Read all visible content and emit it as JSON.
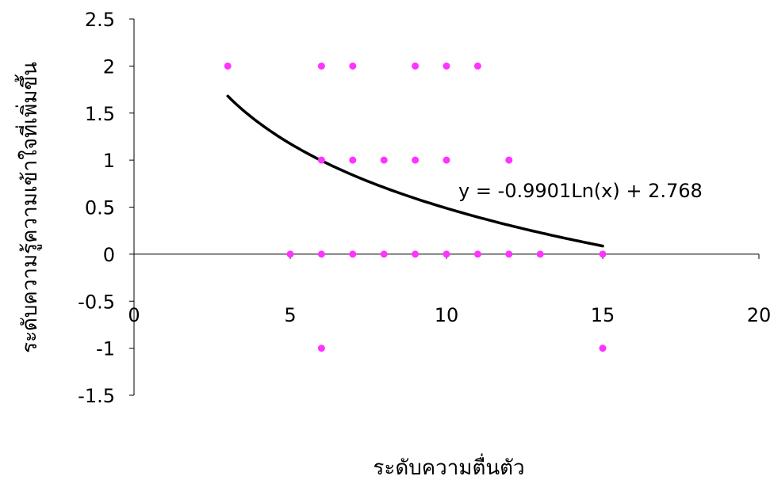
{
  "chart_data": {
    "type": "scatter",
    "title": "",
    "xlabel": "ระดับความตื่นตัว",
    "ylabel": "ระดับความรู้ความเข้าใจที่เพิ่มขึ้น",
    "xlim": [
      0,
      20
    ],
    "ylim": [
      -1.5,
      2.5
    ],
    "x_ticks": [
      0,
      5,
      10,
      15,
      20
    ],
    "y_ticks": [
      2.5,
      2,
      1.5,
      1,
      0.5,
      0,
      -0.5,
      -1,
      -1.5
    ],
    "x_tick_labels": [
      "0",
      "5",
      "10",
      "15",
      "20"
    ],
    "y_tick_labels": [
      "2.5",
      "2",
      "1.5",
      "1",
      "0.5",
      "0",
      "-0.5",
      "-1",
      "-1.5"
    ],
    "grid": false,
    "legend": "none",
    "points": [
      {
        "x": 3,
        "y": 2
      },
      {
        "x": 6,
        "y": 2
      },
      {
        "x": 7,
        "y": 2
      },
      {
        "x": 9,
        "y": 2
      },
      {
        "x": 10,
        "y": 2
      },
      {
        "x": 11,
        "y": 2
      },
      {
        "x": 6,
        "y": 1
      },
      {
        "x": 7,
        "y": 1
      },
      {
        "x": 8,
        "y": 1
      },
      {
        "x": 9,
        "y": 1
      },
      {
        "x": 10,
        "y": 1
      },
      {
        "x": 12,
        "y": 1
      },
      {
        "x": 5,
        "y": 0
      },
      {
        "x": 6,
        "y": 0
      },
      {
        "x": 7,
        "y": 0
      },
      {
        "x": 8,
        "y": 0
      },
      {
        "x": 9,
        "y": 0
      },
      {
        "x": 10,
        "y": 0
      },
      {
        "x": 11,
        "y": 0
      },
      {
        "x": 12,
        "y": 0
      },
      {
        "x": 13,
        "y": 0
      },
      {
        "x": 15,
        "y": 0
      },
      {
        "x": 6,
        "y": -1
      },
      {
        "x": 15,
        "y": -1
      }
    ],
    "trendline": {
      "type": "logarithmic",
      "a": -0.9901,
      "b": 2.768,
      "x_range": [
        3,
        15
      ],
      "equation": "y = -0.9901Ln(x) + 2.768"
    },
    "colors": {
      "points": "#ff33ff",
      "trendline": "#000000",
      "axes": "#000000"
    }
  }
}
